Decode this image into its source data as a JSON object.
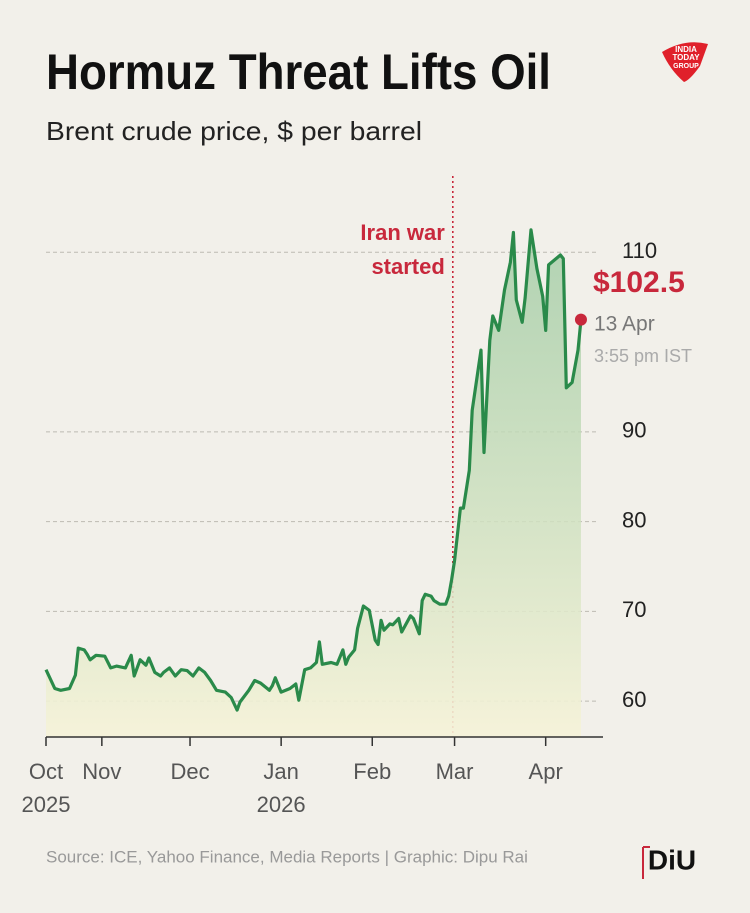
{
  "chart_data": {
    "type": "line",
    "title": "Hormuz Threat Lifts Oil",
    "subtitle": "Brent crude price, $ per barrel",
    "x": [
      12,
      15,
      17,
      20,
      22,
      23,
      25,
      26,
      27,
      29,
      32,
      34,
      36,
      39,
      41,
      42,
      44,
      46,
      47,
      49,
      51,
      52,
      54,
      56,
      58,
      60,
      62,
      64,
      66,
      68,
      70,
      73,
      75,
      77,
      78,
      81,
      83,
      85,
      88,
      89,
      90,
      92,
      95,
      97,
      98,
      100,
      102,
      104,
      105,
      106,
      109,
      111,
      113,
      114,
      115,
      117,
      118,
      120,
      122,
      124,
      125,
      126,
      127,
      129,
      130,
      132,
      133,
      136,
      137,
      139,
      140,
      141,
      143,
      144,
      146,
      148,
      149,
      150,
      151,
      153,
      154,
      156,
      157,
      159,
      160,
      161,
      163,
      164,
      166,
      168,
      170,
      171,
      172,
      174,
      175,
      177,
      179,
      181,
      182,
      183,
      187,
      188,
      189,
      191,
      193,
      194
    ],
    "series": [
      {
        "name": "Brent crude",
        "color": "#2a8a4a",
        "values": [
          63.5,
          61.4,
          61.2,
          61.4,
          62.9,
          65.9,
          65.7,
          65.2,
          64.6,
          65.1,
          65.0,
          63.7,
          63.9,
          63.7,
          65.1,
          62.8,
          64.6,
          64.0,
          64.8,
          63.2,
          62.8,
          63.2,
          63.7,
          62.8,
          63.5,
          63.4,
          62.8,
          63.7,
          63.2,
          62.3,
          61.2,
          61.0,
          60.4,
          59.0,
          59.9,
          61.2,
          62.3,
          62.0,
          61.2,
          61.7,
          62.6,
          61.0,
          61.4,
          61.9,
          60.1,
          63.5,
          63.7,
          64.3,
          66.6,
          64.1,
          64.3,
          64.1,
          65.7,
          64.1,
          64.9,
          65.7,
          68.1,
          70.6,
          70.1,
          66.8,
          66.3,
          69.0,
          67.9,
          68.6,
          68.5,
          69.2,
          67.7,
          69.5,
          69.2,
          67.5,
          71.2,
          71.9,
          71.7,
          71.2,
          70.8,
          70.8,
          71.7,
          73.5,
          75.7,
          81.5,
          81.5,
          85.7,
          92.4,
          96.9,
          99.1,
          87.7,
          100.2,
          102.9,
          101.3,
          105.8,
          108.9,
          112.2,
          104.7,
          102.2,
          104.9,
          112.5,
          108.2,
          105.1,
          101.3,
          108.6,
          109.7,
          109.3,
          94.9,
          95.5,
          99.1,
          102.5
        ]
      }
    ],
    "xlim": [
      12,
      201.5
    ],
    "xticks": [
      {
        "value": 12,
        "label": "Oct"
      },
      {
        "value": 31,
        "label": "Nov"
      },
      {
        "value": 61,
        "label": "Dec"
      },
      {
        "value": 92,
        "label": "Jan"
      },
      {
        "value": 123,
        "label": "Feb"
      },
      {
        "value": 151,
        "label": "Mar"
      },
      {
        "value": 182,
        "label": "Apr"
      }
    ],
    "x_year_labels": [
      {
        "value": 12,
        "label": "2025"
      },
      {
        "value": 92,
        "label": "2026"
      }
    ],
    "ylim": [
      56,
      118.5
    ],
    "yticks": [
      60,
      70,
      80,
      90,
      110
    ],
    "grid": true,
    "annotation": {
      "x": 150.4,
      "lines": [
        "Iran war",
        "started"
      ],
      "color": "#c8283c"
    },
    "end_label": {
      "label": "$102.5",
      "date": "13 Apr",
      "time": "3:55 pm IST",
      "color": "#c8283c"
    },
    "source": "Source: ICE, Yahoo Finance, Media Reports | Graphic: Dipu Rai",
    "logo_top": [
      "INDIA",
      "TODAY",
      "GROUP"
    ],
    "logo_bottom": "DiU"
  }
}
